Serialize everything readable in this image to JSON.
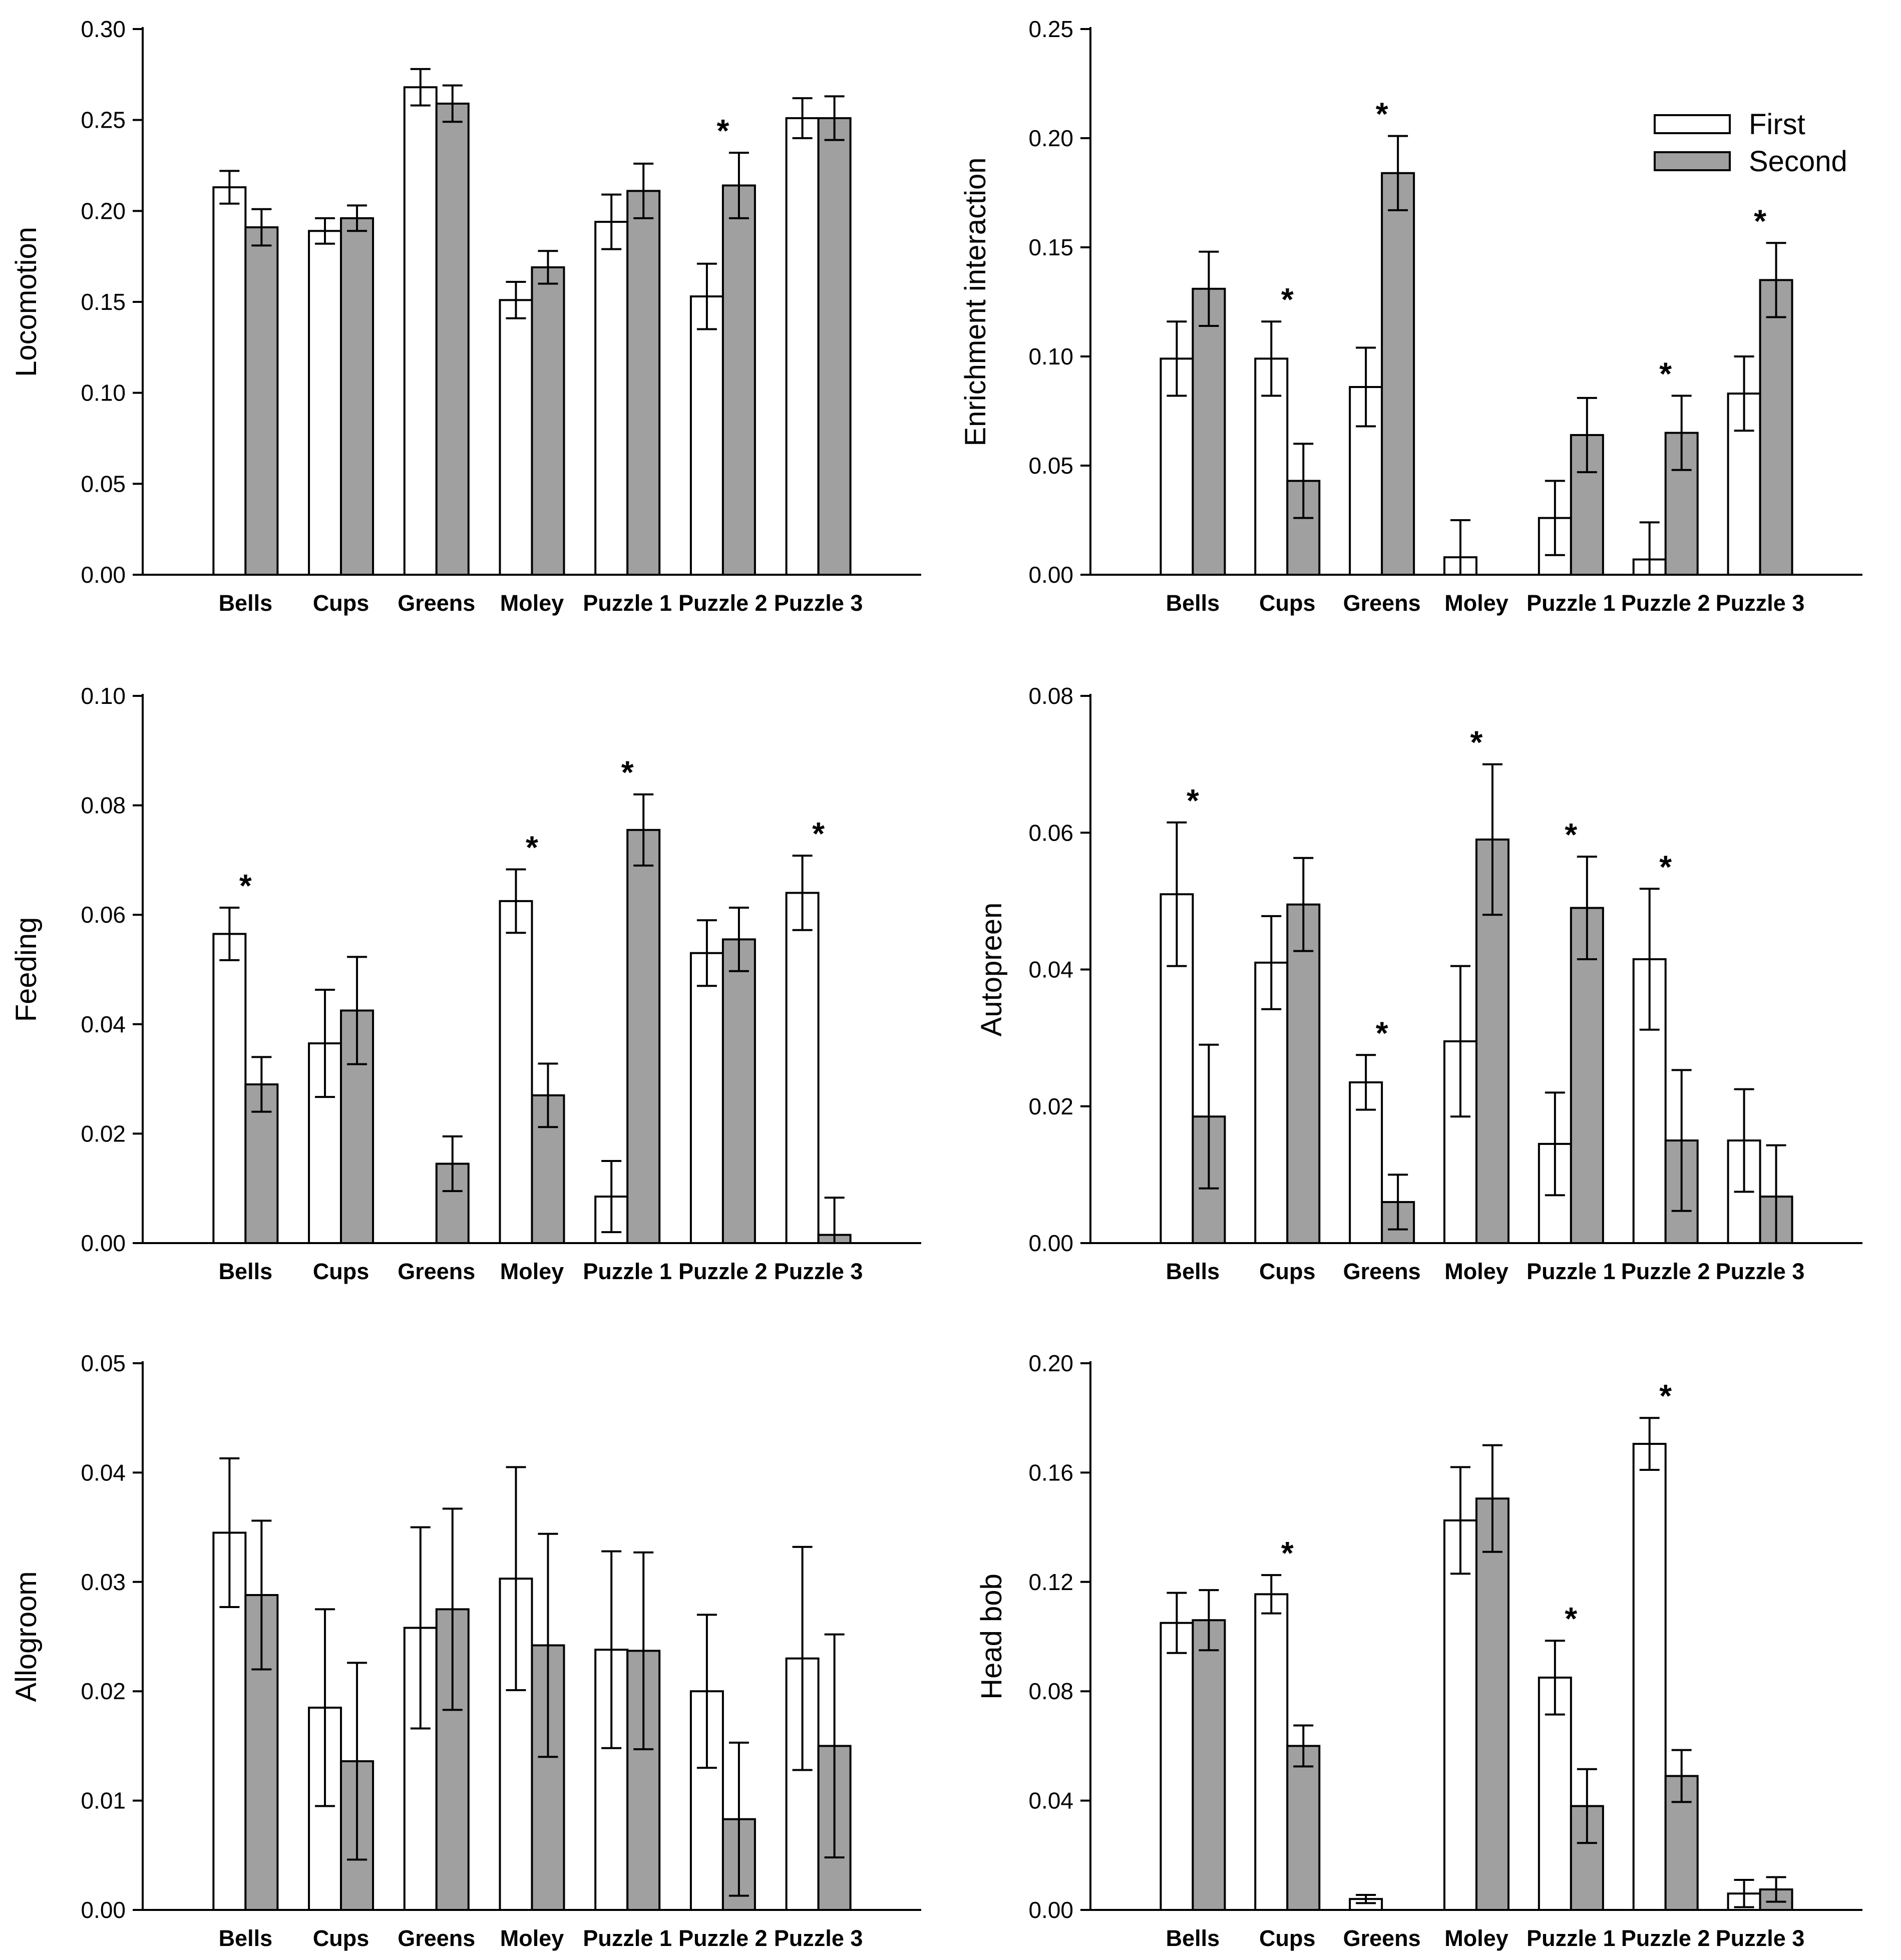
{
  "colors": {
    "first": "#ffffff",
    "second": "#a0a0a0",
    "stroke": "#000000"
  },
  "legend": {
    "placement": "top-right",
    "panel": 1,
    "entries": [
      "First",
      "Second"
    ]
  },
  "chart_data": [
    {
      "type": "bar",
      "ylabel": "Locomotion",
      "ylim": [
        0,
        0.3
      ],
      "yticks": [
        "0.00",
        "0.05",
        "0.10",
        "0.15",
        "0.20",
        "0.25",
        "0.30"
      ],
      "categories": [
        "Bells",
        "Cups",
        "Greens",
        "Moley",
        "Puzzle 1",
        "Puzzle 2",
        "Puzzle 3"
      ],
      "series": [
        {
          "name": "First",
          "values": [
            0.213,
            0.189,
            0.268,
            0.151,
            0.194,
            0.153,
            0.251
          ],
          "errors": [
            0.009,
            0.007,
            0.01,
            0.01,
            0.015,
            0.018,
            0.011
          ]
        },
        {
          "name": "Second",
          "values": [
            0.191,
            0.196,
            0.259,
            0.169,
            0.211,
            0.214,
            0.251
          ],
          "errors": [
            0.01,
            0.007,
            0.01,
            0.009,
            0.015,
            0.018,
            0.012
          ]
        }
      ],
      "significant": [
        5
      ],
      "significant_label": "*"
    },
    {
      "type": "bar",
      "ylabel": "Enrichment interaction",
      "ylim": [
        0,
        0.25
      ],
      "yticks": [
        "0.00",
        "0.05",
        "0.10",
        "0.15",
        "0.20",
        "0.25"
      ],
      "categories": [
        "Bells",
        "Cups",
        "Greens",
        "Moley",
        "Puzzle 1",
        "Puzzle 2",
        "Puzzle 3"
      ],
      "series": [
        {
          "name": "First",
          "values": [
            0.099,
            0.099,
            0.086,
            0.008,
            0.026,
            0.007,
            0.083
          ],
          "errors": [
            0.017,
            0.017,
            0.018,
            0.017,
            0.017,
            0.017,
            0.017
          ]
        },
        {
          "name": "Second",
          "values": [
            0.131,
            0.043,
            0.184,
            0.0,
            0.064,
            0.065,
            0.135
          ],
          "errors": [
            0.017,
            0.017,
            0.017,
            0.0,
            0.017,
            0.017,
            0.017
          ]
        }
      ],
      "significant": [
        1,
        2,
        5,
        6
      ],
      "significant_label": "*"
    },
    {
      "type": "bar",
      "ylabel": "Feeding",
      "ylim": [
        0,
        0.1
      ],
      "yticks": [
        "0.00",
        "0.02",
        "0.04",
        "0.06",
        "0.08",
        "0.10"
      ],
      "categories": [
        "Bells",
        "Cups",
        "Greens",
        "Moley",
        "Puzzle 1",
        "Puzzle 2",
        "Puzzle 3"
      ],
      "series": [
        {
          "name": "First",
          "values": [
            0.0565,
            0.0365,
            0.0,
            0.0625,
            0.0085,
            0.053,
            0.064
          ],
          "errors": [
            0.0048,
            0.0098,
            0.0,
            0.0058,
            0.0065,
            0.006,
            0.0068
          ]
        },
        {
          "name": "Second",
          "values": [
            0.029,
            0.0425,
            0.0145,
            0.027,
            0.0755,
            0.0555,
            0.0015
          ],
          "errors": [
            0.005,
            0.0098,
            0.005,
            0.0058,
            0.0065,
            0.0058,
            0.0068
          ]
        }
      ],
      "significant": [
        0,
        3,
        4,
        6
      ],
      "significant_label": "*"
    },
    {
      "type": "bar",
      "ylabel": "Autopreen",
      "ylim": [
        0,
        0.08
      ],
      "yticks": [
        "0.00",
        "0.02",
        "0.04",
        "0.06",
        "0.08"
      ],
      "categories": [
        "Bells",
        "Cups",
        "Greens",
        "Moley",
        "Puzzle 1",
        "Puzzle 2",
        "Puzzle 3"
      ],
      "series": [
        {
          "name": "First",
          "values": [
            0.051,
            0.041,
            0.0235,
            0.0295,
            0.0145,
            0.0415,
            0.015
          ],
          "errors": [
            0.0105,
            0.0068,
            0.004,
            0.011,
            0.0075,
            0.0103,
            0.0075
          ]
        },
        {
          "name": "Second",
          "values": [
            0.0185,
            0.0495,
            0.006,
            0.059,
            0.049,
            0.015,
            0.0068
          ],
          "errors": [
            0.0105,
            0.0068,
            0.004,
            0.011,
            0.0075,
            0.0103,
            0.0075
          ]
        }
      ],
      "significant": [
        0,
        2,
        3,
        4,
        5
      ],
      "significant_label": "*"
    },
    {
      "type": "bar",
      "ylabel": "Allogroom",
      "ylim": [
        0,
        0.05
      ],
      "yticks": [
        "0.00",
        "0.01",
        "0.02",
        "0.03",
        "0.04",
        "0.05"
      ],
      "categories": [
        "Bells",
        "Cups",
        "Greens",
        "Moley",
        "Puzzle 1",
        "Puzzle 2",
        "Puzzle 3"
      ],
      "series": [
        {
          "name": "First",
          "values": [
            0.0345,
            0.0185,
            0.0258,
            0.0303,
            0.0238,
            0.02,
            0.023
          ],
          "errors": [
            0.0068,
            0.009,
            0.0092,
            0.0102,
            0.009,
            0.007,
            0.0102
          ]
        },
        {
          "name": "Second",
          "values": [
            0.0288,
            0.0136,
            0.0275,
            0.0242,
            0.0237,
            0.0083,
            0.015
          ],
          "errors": [
            0.0068,
            0.009,
            0.0092,
            0.0102,
            0.009,
            0.007,
            0.0102
          ]
        }
      ],
      "significant": [],
      "significant_label": "*"
    },
    {
      "type": "bar",
      "ylabel": "Head bob",
      "ylim": [
        0,
        0.2
      ],
      "yticks": [
        "0.00",
        "0.04",
        "0.08",
        "0.12",
        "0.16",
        "0.20"
      ],
      "categories": [
        "Bells",
        "Cups",
        "Greens",
        "Moley",
        "Puzzle 1",
        "Puzzle 2",
        "Puzzle 3"
      ],
      "series": [
        {
          "name": "First",
          "values": [
            0.105,
            0.1155,
            0.004,
            0.1425,
            0.085,
            0.1705,
            0.006
          ],
          "errors": [
            0.011,
            0.007,
            0.0015,
            0.0195,
            0.0135,
            0.0095,
            0.005
          ]
        },
        {
          "name": "Second",
          "values": [
            0.106,
            0.06,
            0.0,
            0.1505,
            0.038,
            0.049,
            0.0075
          ],
          "errors": [
            0.011,
            0.0075,
            0.0,
            0.0195,
            0.0135,
            0.0095,
            0.0045
          ]
        }
      ],
      "significant": [
        1,
        4,
        5
      ],
      "significant_label": "*"
    }
  ]
}
